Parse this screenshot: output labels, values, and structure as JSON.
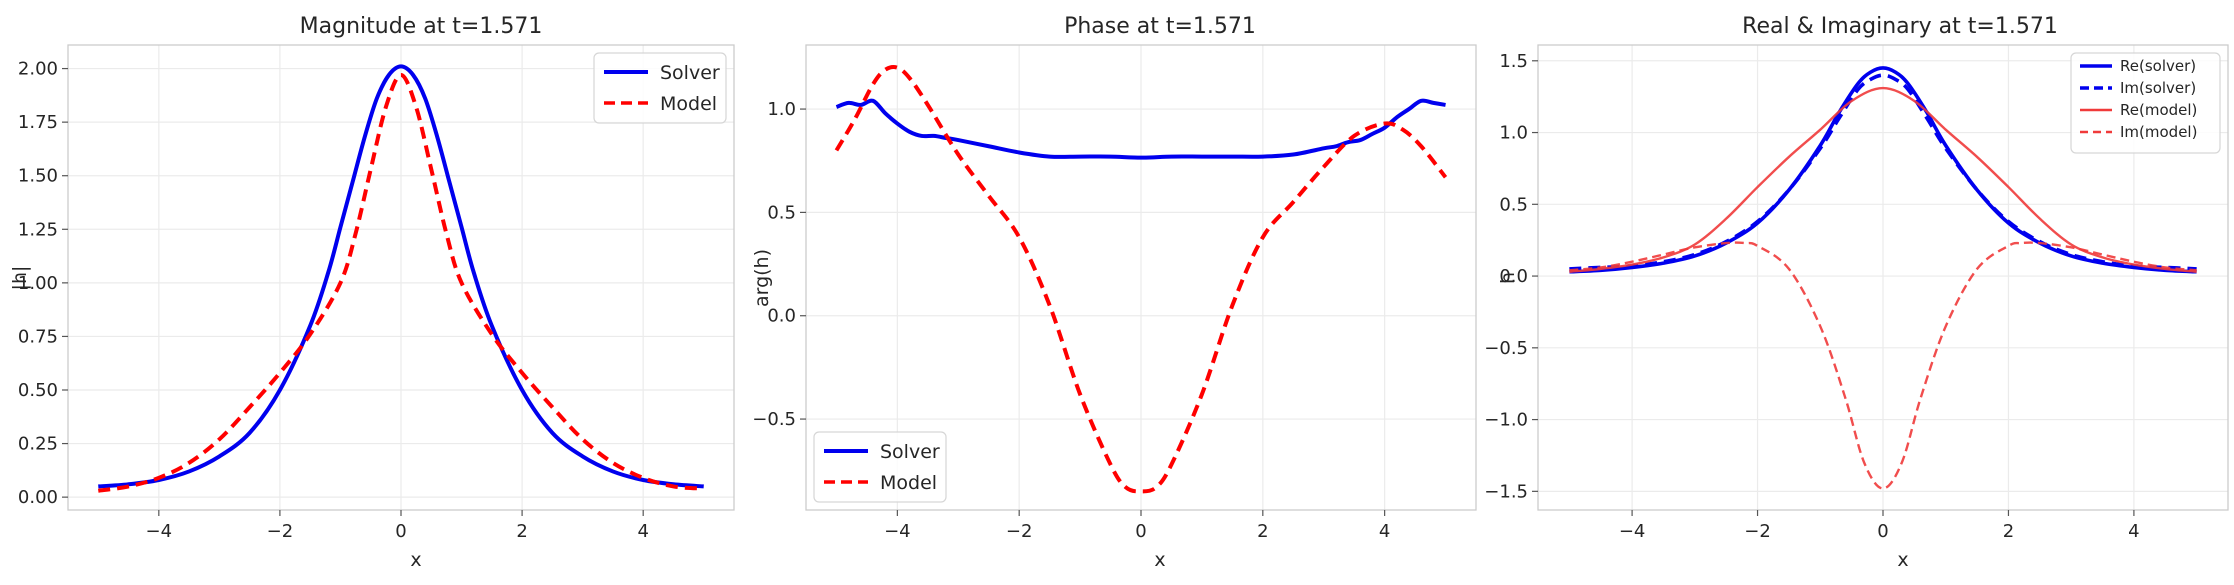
{
  "chart_data": [
    {
      "type": "line",
      "title": "Magnitude at t=1.571",
      "xlabel": "x",
      "ylabel": "|h|",
      "xlim": [
        -5.5,
        5.5
      ],
      "ylim": [
        -0.06,
        2.11
      ],
      "xticks": [
        -4,
        -2,
        0,
        2,
        4
      ],
      "xtick_labels": [
        "−4",
        "−2",
        "0",
        "2",
        "4"
      ],
      "yticks": [
        0,
        0.25,
        0.5,
        0.75,
        1.0,
        1.25,
        1.5,
        1.75,
        2.0
      ],
      "ytick_labels": [
        "0.00",
        "0.25",
        "0.50",
        "0.75",
        "1.00",
        "1.25",
        "1.50",
        "1.75",
        "2.00"
      ],
      "grid": true,
      "legend_position": "top-right",
      "series": [
        {
          "name": "Solver",
          "color": "#0000ee",
          "style": "solid",
          "x": [
            -5,
            -4.5,
            -4,
            -3.5,
            -3,
            -2.5,
            -2,
            -1.5,
            -1.2,
            -1,
            -0.8,
            -0.6,
            -0.4,
            -0.2,
            0,
            0.2,
            0.4,
            0.6,
            0.8,
            1,
            1.2,
            1.5,
            2,
            2.5,
            3,
            3.5,
            4,
            4.5,
            5
          ],
          "y": [
            0.05,
            0.06,
            0.08,
            0.12,
            0.19,
            0.3,
            0.5,
            0.8,
            1.05,
            1.26,
            1.47,
            1.68,
            1.86,
            1.97,
            2.01,
            1.97,
            1.86,
            1.68,
            1.47,
            1.26,
            1.05,
            0.8,
            0.5,
            0.3,
            0.19,
            0.12,
            0.08,
            0.06,
            0.05
          ]
        },
        {
          "name": "Model",
          "color": "#ff0000",
          "style": "dashed",
          "x": [
            -5,
            -4.5,
            -4,
            -3.5,
            -3,
            -2.5,
            -2,
            -1.5,
            -1,
            -0.75,
            -0.5,
            -0.25,
            0,
            0.25,
            0.5,
            0.75,
            1,
            1.5,
            2,
            2.5,
            3,
            3.5,
            4,
            4.5,
            5
          ],
          "y": [
            0.03,
            0.05,
            0.09,
            0.16,
            0.27,
            0.42,
            0.58,
            0.76,
            1.0,
            1.23,
            1.53,
            1.82,
            1.97,
            1.82,
            1.53,
            1.23,
            1.0,
            0.76,
            0.58,
            0.42,
            0.27,
            0.16,
            0.09,
            0.05,
            0.04
          ]
        }
      ]
    },
    {
      "type": "line",
      "title": "Phase at t=1.571",
      "xlabel": "x",
      "ylabel": "arg(h)",
      "xlim": [
        -5.5,
        5.5
      ],
      "ylim": [
        -0.94,
        1.31
      ],
      "xticks": [
        -4,
        -2,
        0,
        2,
        4
      ],
      "xtick_labels": [
        "−4",
        "−2",
        "0",
        "2",
        "4"
      ],
      "yticks": [
        -0.5,
        0,
        0.5,
        1.0
      ],
      "ytick_labels": [
        "−0.5",
        "0.0",
        "0.5",
        "1.0"
      ],
      "grid": true,
      "legend_position": "bottom-left",
      "series": [
        {
          "name": "Solver",
          "color": "#0000ee",
          "style": "solid",
          "x": [
            -5,
            -4.8,
            -4.6,
            -4.4,
            -4.2,
            -4,
            -3.8,
            -3.6,
            -3.4,
            -3.2,
            -3,
            -2.5,
            -2,
            -1.5,
            -1,
            -0.5,
            0,
            0.5,
            1,
            1.5,
            2,
            2.5,
            3,
            3.2,
            3.4,
            3.6,
            3.8,
            4,
            4.2,
            4.4,
            4.6,
            4.8,
            5
          ],
          "y": [
            1.01,
            1.03,
            1.02,
            1.04,
            0.98,
            0.93,
            0.89,
            0.87,
            0.87,
            0.86,
            0.85,
            0.82,
            0.79,
            0.77,
            0.77,
            0.77,
            0.765,
            0.77,
            0.77,
            0.77,
            0.77,
            0.78,
            0.81,
            0.82,
            0.84,
            0.85,
            0.88,
            0.91,
            0.96,
            1.0,
            1.04,
            1.03,
            1.02
          ]
        },
        {
          "name": "Model",
          "color": "#ff0000",
          "style": "dashed",
          "x": [
            -5,
            -4.7,
            -4.4,
            -4.2,
            -4,
            -3.8,
            -3.5,
            -3,
            -2.5,
            -2,
            -1.5,
            -1,
            -0.5,
            -0.25,
            0,
            0.25,
            0.5,
            1,
            1.5,
            2,
            2.5,
            3,
            3.5,
            4,
            4.3,
            4.6,
            5
          ],
          "y": [
            0.8,
            0.95,
            1.12,
            1.19,
            1.2,
            1.15,
            1.02,
            0.78,
            0.58,
            0.38,
            0.05,
            -0.38,
            -0.72,
            -0.83,
            -0.85,
            -0.83,
            -0.72,
            -0.38,
            0.05,
            0.38,
            0.55,
            0.72,
            0.87,
            0.93,
            0.9,
            0.82,
            0.67
          ]
        }
      ]
    },
    {
      "type": "line",
      "title": "Real & Imaginary at t=1.571",
      "xlabel": "x",
      "ylabel": "h",
      "xlim": [
        -5.5,
        5.5
      ],
      "ylim": [
        -1.63,
        1.61
      ],
      "xticks": [
        -4,
        -2,
        0,
        2,
        4
      ],
      "xtick_labels": [
        "−4",
        "−2",
        "0",
        "2",
        "4"
      ],
      "yticks": [
        -1.5,
        -1.0,
        -0.5,
        0,
        0.5,
        1.0,
        1.5
      ],
      "ytick_labels": [
        "−1.5",
        "−1.0",
        "−0.5",
        "0.0",
        "0.5",
        "1.0",
        "1.5"
      ],
      "grid": true,
      "legend_position": "top-right",
      "series": [
        {
          "name": "Re(solver)",
          "color": "#0000ee",
          "style": "solid",
          "width": 3.6,
          "x": [
            -5,
            -4.5,
            -4,
            -3.5,
            -3,
            -2.5,
            -2,
            -1.5,
            -1,
            -0.7,
            -0.4,
            -0.2,
            0,
            0.2,
            0.4,
            0.7,
            1,
            1.5,
            2,
            2.5,
            3,
            3.5,
            4,
            4.5,
            5
          ],
          "y": [
            0.03,
            0.04,
            0.06,
            0.09,
            0.14,
            0.23,
            0.37,
            0.6,
            0.91,
            1.14,
            1.34,
            1.42,
            1.45,
            1.42,
            1.34,
            1.14,
            0.91,
            0.6,
            0.37,
            0.23,
            0.14,
            0.09,
            0.06,
            0.04,
            0.03
          ]
        },
        {
          "name": "Im(solver)",
          "color": "#0000ee",
          "style": "dashed",
          "width": 3.6,
          "x": [
            -5,
            -4.5,
            -4,
            -3.5,
            -3,
            -2.5,
            -2,
            -1.5,
            -1,
            -0.7,
            -0.4,
            -0.2,
            0,
            0.2,
            0.4,
            0.7,
            1,
            1.5,
            2,
            2.5,
            3,
            3.5,
            4,
            4.5,
            5
          ],
          "y": [
            0.05,
            0.06,
            0.07,
            0.1,
            0.15,
            0.24,
            0.38,
            0.6,
            0.89,
            1.1,
            1.3,
            1.37,
            1.4,
            1.37,
            1.3,
            1.1,
            0.89,
            0.6,
            0.38,
            0.24,
            0.15,
            0.1,
            0.07,
            0.06,
            0.05
          ]
        },
        {
          "name": "Re(model)",
          "color": "#f03a3a",
          "style": "solid",
          "width": 2.4,
          "x": [
            -5,
            -4.5,
            -4,
            -3.5,
            -3,
            -2.5,
            -2,
            -1.5,
            -1,
            -0.5,
            0,
            0.5,
            1,
            1.5,
            2,
            2.5,
            3,
            3.5,
            4,
            4.5,
            5
          ],
          "y": [
            0.03,
            0.05,
            0.08,
            0.13,
            0.22,
            0.4,
            0.62,
            0.83,
            1.02,
            1.22,
            1.31,
            1.22,
            1.02,
            0.83,
            0.62,
            0.4,
            0.22,
            0.13,
            0.08,
            0.05,
            0.03
          ]
        },
        {
          "name": "Im(model)",
          "color": "#f03a3a",
          "style": "dashed",
          "width": 2.4,
          "x": [
            -5,
            -4.5,
            -4,
            -3.5,
            -3,
            -2.5,
            -2.2,
            -2,
            -1.5,
            -1,
            -0.6,
            -0.3,
            0,
            0.3,
            0.6,
            1,
            1.5,
            2,
            2.2,
            2.5,
            3,
            3.5,
            4,
            4.5,
            5
          ],
          "y": [
            0.04,
            0.06,
            0.1,
            0.15,
            0.2,
            0.23,
            0.23,
            0.21,
            0.05,
            -0.35,
            -0.85,
            -1.3,
            -1.48,
            -1.3,
            -0.85,
            -0.35,
            0.05,
            0.21,
            0.23,
            0.23,
            0.2,
            0.15,
            0.1,
            0.06,
            0.04
          ]
        }
      ]
    }
  ]
}
